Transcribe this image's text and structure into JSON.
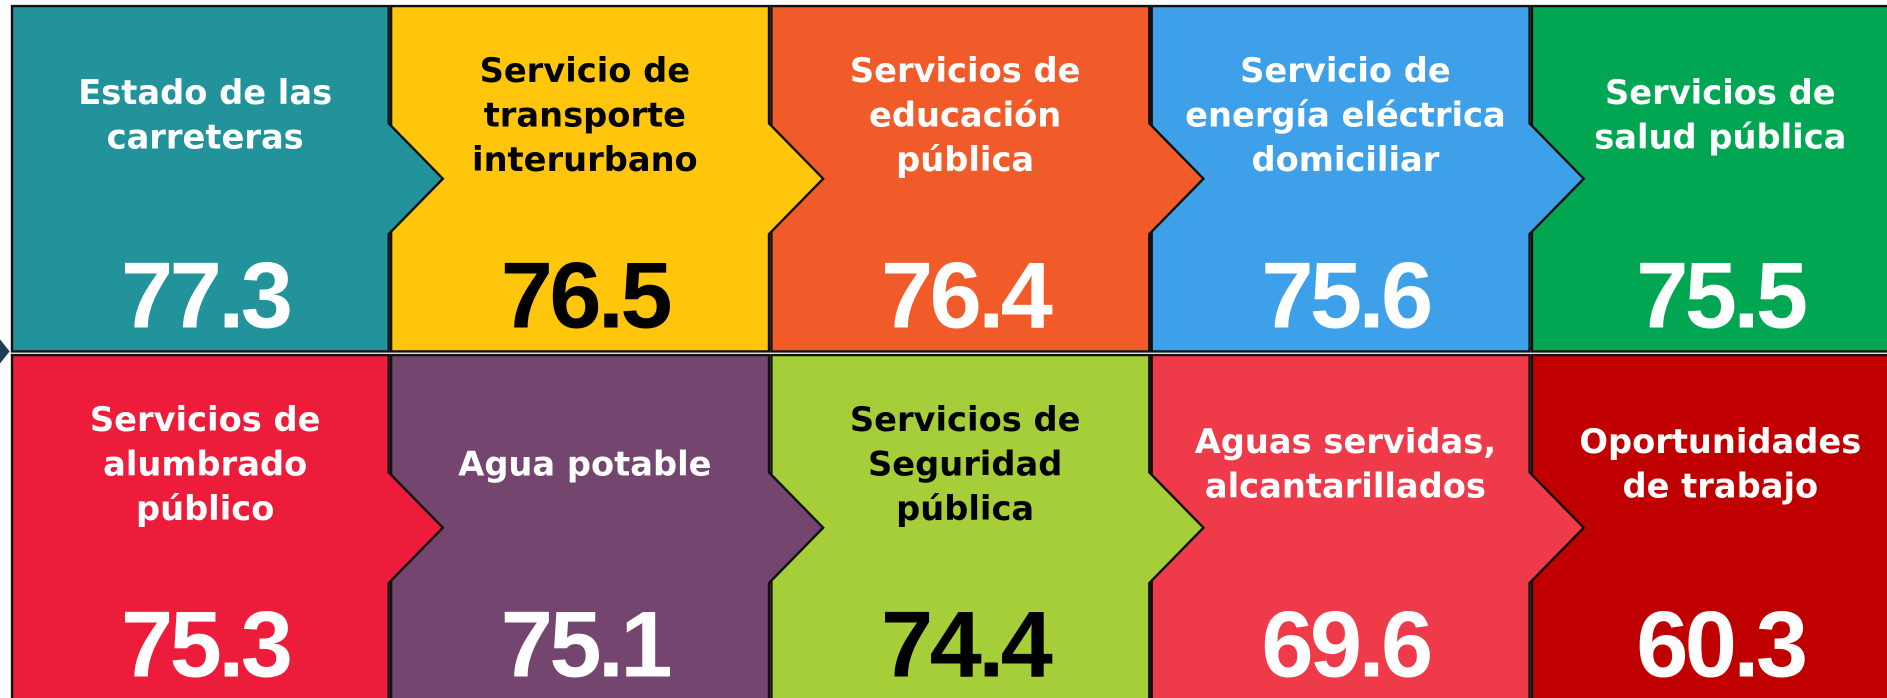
{
  "tiles": [
    {
      "label": [
        "Estado de las",
        "carreteras"
      ],
      "value": 77.3,
      "color": "#22939a",
      "text_color": "#ffffff"
    },
    {
      "label": [
        "Servicio de",
        "transporte",
        "interurbano"
      ],
      "value": 76.5,
      "color": "#ffc60b",
      "text_color": "#000000"
    },
    {
      "label": [
        "Servicios de",
        "educación",
        "pública"
      ],
      "value": 76.4,
      "color": "#f15a29",
      "text_color": "#ffffff"
    },
    {
      "label": [
        "Servicio de",
        "energía eléctrica",
        "domiciliar"
      ],
      "value": 75.6,
      "color": "#3da0e8",
      "text_color": "#ffffff"
    },
    {
      "label": [
        "Servicios de",
        "salud pública"
      ],
      "value": 75.5,
      "color": "#00a651",
      "text_color": "#ffffff"
    },
    {
      "label": [
        "Servicios de",
        "alumbrado",
        "público"
      ],
      "value": 75.3,
      "color": "#ed1c3a",
      "text_color": "#ffffff"
    },
    {
      "label": [
        "Agua potable"
      ],
      "value": 75.1,
      "color": "#73456f",
      "text_color": "#ffffff"
    },
    {
      "label": [
        "Servicios de",
        "Seguridad",
        "pública"
      ],
      "value": 74.4,
      "color": "#a6ce39",
      "text_color": "#000000"
    },
    {
      "label": [
        "Aguas servidas,",
        "alcantarillados"
      ],
      "value": 69.6,
      "color": "#ef3a4a",
      "text_color": "#ffffff"
    },
    {
      "label": [
        "Oportunidades",
        "de trabajo"
      ],
      "value": 60.3,
      "color": "#c00000",
      "text_color": "#ffffff"
    }
  ]
}
